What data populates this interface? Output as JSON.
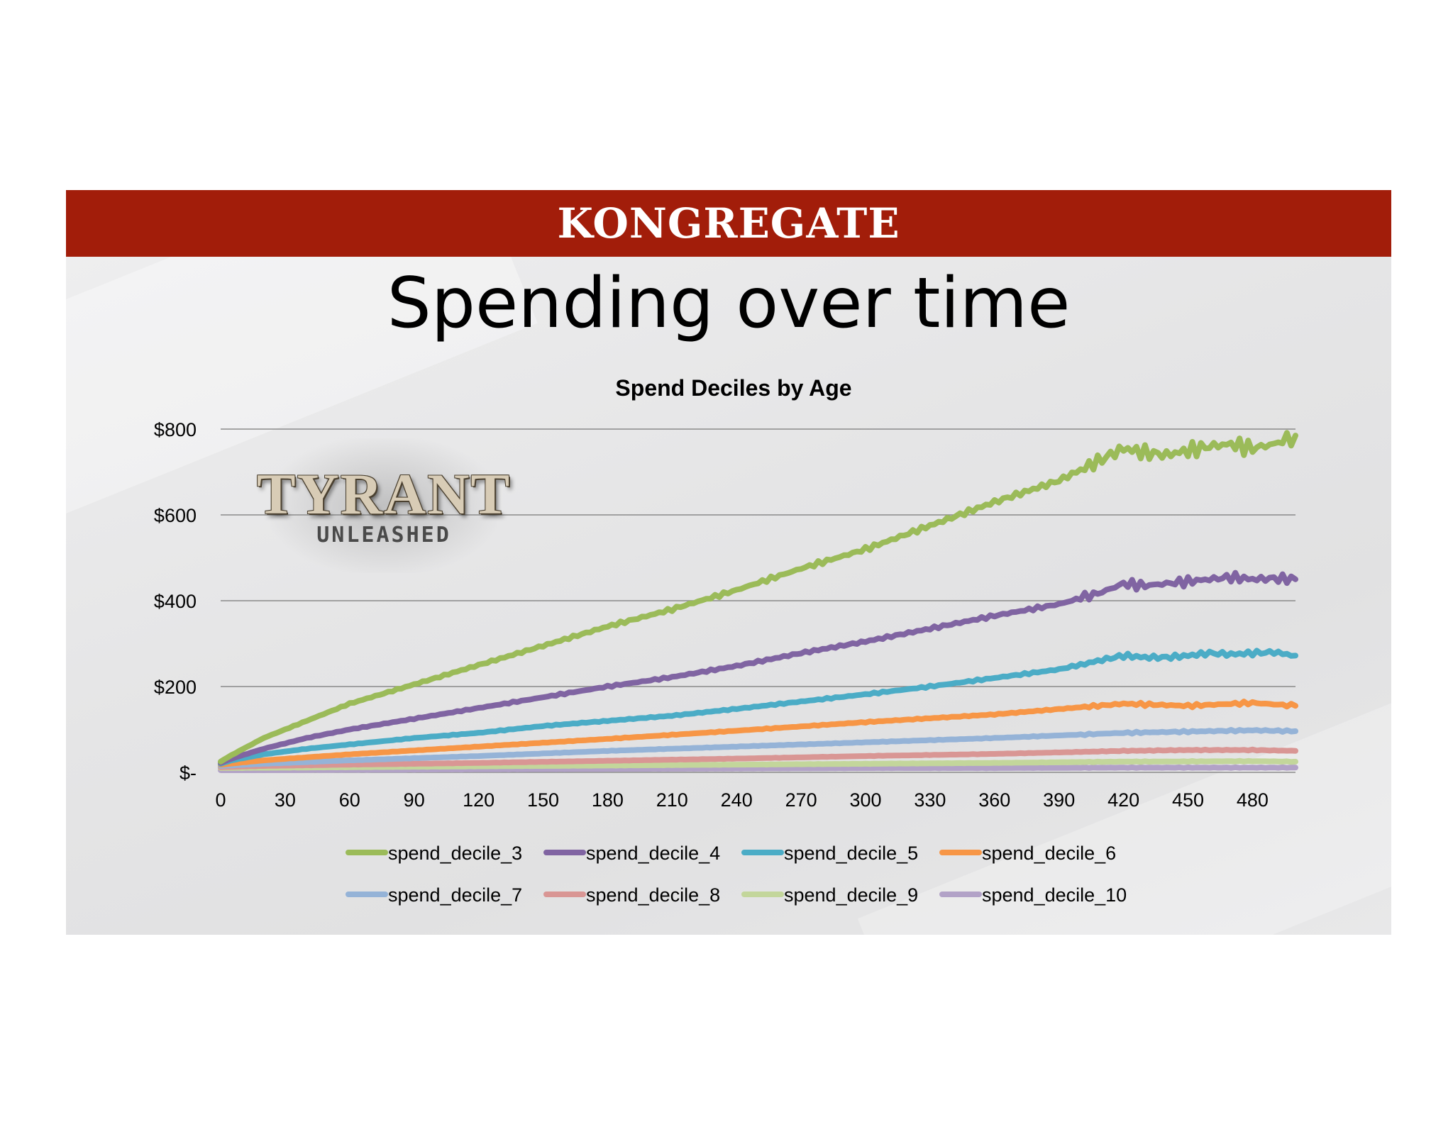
{
  "header": {
    "brand": "KONGREGATE"
  },
  "slide": {
    "title": "Spending over time"
  },
  "logo": {
    "main": "TYRANT",
    "sub": "UNLEASHED"
  },
  "chart_data": {
    "type": "line",
    "title": "Spend Deciles by Age",
    "xlabel": "",
    "ylabel": "",
    "x_ticks": [
      0,
      30,
      60,
      90,
      120,
      150,
      180,
      210,
      240,
      270,
      300,
      330,
      360,
      390,
      420,
      450,
      480
    ],
    "xlim": [
      0,
      500
    ],
    "y_ticks": [
      0,
      200,
      400,
      600,
      800
    ],
    "y_tick_labels": [
      "$-",
      "$200",
      "$400",
      "$600",
      "$800"
    ],
    "ylim": [
      0,
      800
    ],
    "grid": "horizontal",
    "legend": "bottom",
    "series": [
      {
        "name": "spend_decile_3",
        "color": "#9bbb59",
        "x": [
          0,
          5,
          20,
          40,
          60,
          90,
          120,
          150,
          180,
          210,
          240,
          270,
          300,
          330,
          360,
          390,
          410,
          420,
          430,
          440,
          450,
          460,
          470,
          480,
          490,
          500
        ],
        "values": [
          25,
          40,
          80,
          120,
          160,
          205,
          250,
          295,
          340,
          380,
          425,
          475,
          520,
          575,
          630,
          680,
          730,
          755,
          745,
          740,
          750,
          760,
          765,
          755,
          765,
          785
        ]
      },
      {
        "name": "spend_decile_4",
        "color": "#8064a2",
        "x": [
          0,
          5,
          20,
          40,
          60,
          90,
          120,
          150,
          180,
          210,
          240,
          270,
          300,
          330,
          360,
          390,
          410,
          420,
          430,
          440,
          450,
          460,
          470,
          480,
          490,
          500
        ],
        "values": [
          22,
          32,
          55,
          80,
          100,
          125,
          150,
          175,
          200,
          222,
          248,
          278,
          305,
          335,
          365,
          392,
          420,
          440,
          435,
          440,
          445,
          450,
          455,
          450,
          452,
          450
        ]
      },
      {
        "name": "spend_decile_5",
        "color": "#4bacc6",
        "x": [
          0,
          5,
          20,
          40,
          60,
          90,
          120,
          150,
          180,
          210,
          240,
          270,
          300,
          330,
          360,
          390,
          410,
          420,
          430,
          440,
          450,
          460,
          470,
          480,
          490,
          500
        ],
        "values": [
          20,
          28,
          42,
          55,
          65,
          80,
          92,
          108,
          120,
          132,
          148,
          165,
          182,
          200,
          220,
          240,
          262,
          272,
          268,
          268,
          272,
          278,
          275,
          278,
          280,
          272
        ]
      },
      {
        "name": "spend_decile_6",
        "color": "#f79646",
        "x": [
          0,
          20,
          60,
          120,
          180,
          240,
          300,
          360,
          420,
          450,
          480,
          500
        ],
        "values": [
          18,
          28,
          42,
          60,
          78,
          97,
          117,
          135,
          160,
          155,
          162,
          155
        ]
      },
      {
        "name": "spend_decile_7",
        "color": "#95b3d7",
        "x": [
          0,
          20,
          60,
          120,
          180,
          240,
          300,
          360,
          420,
          450,
          480,
          500
        ],
        "values": [
          15,
          20,
          28,
          38,
          50,
          60,
          70,
          80,
          92,
          95,
          98,
          96
        ]
      },
      {
        "name": "spend_decile_8",
        "color": "#d99694",
        "x": [
          0,
          20,
          60,
          120,
          180,
          240,
          300,
          360,
          420,
          450,
          480,
          500
        ],
        "values": [
          12,
          15,
          18,
          22,
          27,
          32,
          38,
          43,
          50,
          52,
          52,
          50
        ]
      },
      {
        "name": "spend_decile_9",
        "color": "#c3d69b",
        "x": [
          0,
          60,
          120,
          180,
          240,
          300,
          360,
          420,
          480,
          500
        ],
        "values": [
          10,
          12,
          14,
          16,
          18,
          20,
          22,
          25,
          26,
          25
        ]
      },
      {
        "name": "spend_decile_10",
        "color": "#b2a2c7",
        "x": [
          0,
          60,
          120,
          180,
          240,
          300,
          360,
          420,
          480,
          500
        ],
        "values": [
          5,
          6,
          7,
          8,
          9,
          10,
          10,
          11,
          11,
          11
        ]
      }
    ]
  }
}
